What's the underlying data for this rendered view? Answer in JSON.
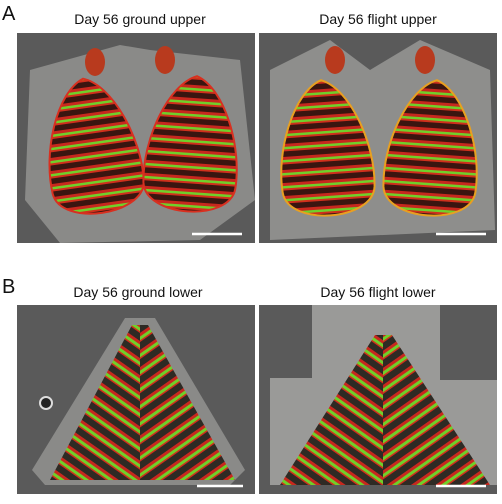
{
  "panels": [
    {
      "label": "A",
      "images": [
        {
          "title": "Day 56 ground upper"
        },
        {
          "title": "Day 56 flight upper"
        }
      ]
    },
    {
      "label": "B",
      "images": [
        {
          "title": "Day 56 ground lower"
        },
        {
          "title": "Day 56 flight lower"
        }
      ]
    }
  ]
}
